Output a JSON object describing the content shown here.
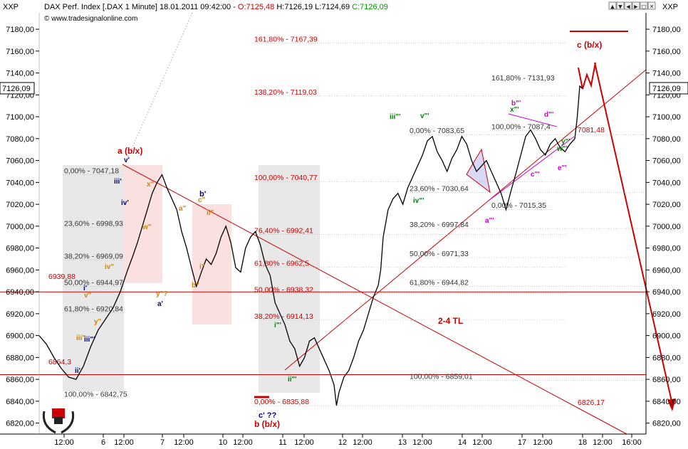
{
  "header": {
    "symbol_left": "XXP",
    "symbol_right": "XXP",
    "title": "DAX Perf. Index [.DAX 1 Minute] 18.01.2011 09:42:00 -",
    "quote": [
      {
        "text": "O:7125,48",
        "color": "#cc0000"
      },
      {
        "text": " H:7126,19 L:7124,69 ",
        "color": "#000000"
      },
      {
        "text": "C:7126,09",
        "color": "#009900"
      }
    ],
    "website": "www.tradesignalonline.com",
    "copyright_icon": "copyright-icon",
    "window_buttons": [
      "scroll-up-icon",
      "scroll-down-icon",
      "scroll-left-icon",
      "scroll-right-icon",
      "maximize-icon",
      "close-icon"
    ]
  },
  "logo": {
    "icon": "laurel-helmet-logo"
  },
  "chart_data": {
    "type": "line",
    "title": "DAX Perf. Index [.DAX 1 Minute]",
    "y_range": [
      6810,
      7195
    ],
    "y_ticks": [
      "6820,00",
      "6840,00",
      "6860,00",
      "6880,00",
      "6900,00",
      "6920,00",
      "6940,00",
      "6960,00",
      "6980,00",
      "7000,00",
      "7020,00",
      "7040,00",
      "7060,00",
      "7080,00",
      "7100,00",
      "7120,00",
      "7140,00",
      "7160,00",
      "7180,00"
    ],
    "x_ticks": [
      "12:00",
      "6",
      "12:00",
      "7",
      "12:00",
      "10",
      "12:00",
      "11",
      "12:00",
      "12",
      "12:00",
      "13",
      "12:00",
      "14",
      "12:00",
      "17",
      "12:00",
      "18",
      "12:00",
      "16:00"
    ],
    "last_price_label": "7126,09",
    "series": [
      {
        "color": "#000000",
        "points": [
          [
            0,
            6900
          ],
          [
            3,
            6892
          ],
          [
            6,
            6880
          ],
          [
            9,
            6870
          ],
          [
            12,
            6862
          ],
          [
            15,
            6860
          ],
          [
            18,
            6872
          ],
          [
            21,
            6890
          ],
          [
            24,
            6905
          ],
          [
            27,
            6915
          ],
          [
            30,
            6925
          ],
          [
            33,
            6940
          ],
          [
            36,
            6960
          ],
          [
            38,
            6972
          ],
          [
            40,
            6985
          ],
          [
            42,
            7000
          ],
          [
            44,
            7015
          ],
          [
            46,
            7030
          ],
          [
            48,
            7040
          ],
          [
            50,
            7047
          ],
          [
            52,
            7035
          ],
          [
            54,
            7025
          ],
          [
            56,
            7015
          ],
          [
            58,
            6995
          ],
          [
            60,
            6980
          ],
          [
            62,
            6962
          ],
          [
            64,
            6945
          ],
          [
            66,
            6958
          ],
          [
            68,
            6970
          ],
          [
            70,
            6965
          ],
          [
            72,
            6975
          ],
          [
            74,
            6990
          ],
          [
            76,
            7000
          ],
          [
            78,
            6985
          ],
          [
            80,
            6962
          ],
          [
            82,
            6958
          ],
          [
            84,
            6980
          ],
          [
            86,
            6990
          ],
          [
            88,
            6995
          ],
          [
            90,
            6983
          ],
          [
            92,
            6965
          ],
          [
            94,
            6955
          ],
          [
            96,
            6930
          ],
          [
            98,
            6920
          ],
          [
            100,
            6910
          ],
          [
            102,
            6895
          ],
          [
            104,
            6888
          ],
          [
            106,
            6872
          ],
          [
            108,
            6880
          ],
          [
            110,
            6895
          ],
          [
            112,
            6898
          ],
          [
            114,
            6888
          ],
          [
            116,
            6878
          ],
          [
            118,
            6868
          ],
          [
            120,
            6855
          ],
          [
            121,
            6836
          ],
          [
            122,
            6848
          ],
          [
            124,
            6862
          ],
          [
            126,
            6868
          ],
          [
            128,
            6880
          ],
          [
            130,
            6895
          ],
          [
            132,
            6905
          ],
          [
            134,
            6920
          ],
          [
            136,
            6935
          ],
          [
            138,
            6946
          ],
          [
            139,
            6960
          ],
          [
            140,
            6990
          ],
          [
            142,
            7015
          ],
          [
            144,
            7025
          ],
          [
            146,
            7030
          ],
          [
            148,
            7020
          ],
          [
            150,
            7035
          ],
          [
            152,
            7045
          ],
          [
            154,
            7055
          ],
          [
            156,
            7065
          ],
          [
            158,
            7078
          ],
          [
            160,
            7082
          ],
          [
            162,
            7068
          ],
          [
            164,
            7060
          ],
          [
            166,
            7050
          ],
          [
            168,
            7062
          ],
          [
            170,
            7070
          ],
          [
            172,
            7082
          ],
          [
            174,
            7075
          ],
          [
            176,
            7060
          ],
          [
            178,
            7050
          ],
          [
            180,
            7055
          ],
          [
            182,
            7060
          ],
          [
            184,
            7050
          ],
          [
            186,
            7040
          ],
          [
            188,
            7030
          ],
          [
            190,
            7015
          ],
          [
            192,
            7032
          ],
          [
            194,
            7048
          ],
          [
            196,
            7065
          ],
          [
            198,
            7082
          ],
          [
            200,
            7088
          ],
          [
            202,
            7080
          ],
          [
            204,
            7070
          ],
          [
            206,
            7065
          ],
          [
            208,
            7075
          ],
          [
            210,
            7080
          ],
          [
            212,
            7072
          ],
          [
            214,
            7068
          ],
          [
            216,
            7075
          ],
          [
            218,
            7080
          ],
          [
            219,
            7100
          ],
          [
            220,
            7128
          ],
          [
            221,
            7126
          ]
        ]
      }
    ],
    "fib_levels": [
      {
        "label": "161,80% - 7167,39",
        "value": 7167.39,
        "color": "#cc0000"
      },
      {
        "label": "138,20% - 7119,03",
        "value": 7119.03,
        "color": "#cc0000"
      },
      {
        "label": "100,00% - 7040,77",
        "value": 7040.77,
        "color": "#cc0000"
      },
      {
        "label": "76,40% - 6992,41",
        "value": 6992.41,
        "color": "#cc0000"
      },
      {
        "label": "61,80% - 6962,5",
        "value": 6962.5,
        "color": "#cc0000"
      },
      {
        "label": "50,00% - 6938,32",
        "value": 6938.32,
        "color": "#cc0000"
      },
      {
        "label": "38,20% - 6914,13",
        "value": 6914.13,
        "color": "#cc0000"
      },
      {
        "label": "0,00% - 6835,88",
        "value": 6835.88,
        "color": "#cc0000"
      },
      {
        "label": "0,00% - 7047,18",
        "value": 7047.18,
        "color": "#333333"
      },
      {
        "label": "23,60% - 6998,93",
        "value": 6998.93,
        "color": "#333333"
      },
      {
        "label": "38,20% - 6969,09",
        "value": 6969.09,
        "color": "#333333"
      },
      {
        "label": "50,00% - 6944,97",
        "value": 6944.97,
        "color": "#333333"
      },
      {
        "label": "61,80% - 6920,84",
        "value": 6920.84,
        "color": "#333333"
      },
      {
        "label": "100,00% - 6842,75",
        "value": 6842.75,
        "color": "#333333"
      },
      {
        "label": "0,00% - 7083,65",
        "value": 7083.65,
        "color": "#333333"
      },
      {
        "label": "23,60% - 7030,64",
        "value": 7030.64,
        "color": "#333333"
      },
      {
        "label": "38,20% - 6997,84",
        "value": 6997.84,
        "color": "#333333"
      },
      {
        "label": "50,00% - 6971,33",
        "value": 6971.33,
        "color": "#333333"
      },
      {
        "label": "61,80% - 6944,82",
        "value": 6944.82,
        "color": "#333333"
      },
      {
        "label": "100,00% - 6859,01",
        "value": 6859.01,
        "color": "#333333"
      },
      {
        "label": "161,80% - 7131,93",
        "value": 7131.93,
        "color": "#333333"
      },
      {
        "label": "100,00% - 7087,4",
        "value": 7087.4,
        "color": "#333333"
      },
      {
        "label": "0,00% - 7015,35",
        "value": 7015.35,
        "color": "#333333"
      }
    ],
    "price_labels": [
      {
        "text": "6939,88",
        "value": 6939.88,
        "color": "#cc0000"
      },
      {
        "text": "6864,3",
        "value": 6864.3,
        "color": "#cc0000"
      },
      {
        "text": "7081,48",
        "value": 7081.48,
        "color": "#cc0000"
      },
      {
        "text": "6826,17",
        "value": 6826.17,
        "color": "#cc0000"
      }
    ],
    "annotations": [
      {
        "text": "a (b/x)",
        "color": "#cc0000"
      },
      {
        "text": "b (b/x)",
        "color": "#cc0000"
      },
      {
        "text": "c (b/x)",
        "color": "#cc0000"
      },
      {
        "text": "2-4 TL",
        "color": "#cc0000"
      },
      {
        "text": "c' ??",
        "color": "#000080"
      },
      {
        "text": "a'",
        "color": "#000080"
      },
      {
        "text": "b'",
        "color": "#000080"
      },
      {
        "text": "y\"?",
        "color": "#cc8800"
      },
      {
        "text": "v'",
        "color": "#000080"
      },
      {
        "text": "iii'",
        "color": "#000080"
      },
      {
        "text": "iv'",
        "color": "#000080"
      },
      {
        "text": "x\"",
        "color": "#cc8800"
      },
      {
        "text": "w\"",
        "color": "#cc8800"
      },
      {
        "text": "a\"",
        "color": "#cc8800"
      },
      {
        "text": "b\"",
        "color": "#cc8800"
      },
      {
        "text": "c\"",
        "color": "#cc8800"
      },
      {
        "text": "i\"",
        "color": "#cc8800"
      },
      {
        "text": "ii\"",
        "color": "#cc8800"
      },
      {
        "text": "iii\"",
        "color": "#cc8800"
      },
      {
        "text": "iv\"",
        "color": "#cc8800"
      },
      {
        "text": "v\"",
        "color": "#cc8800"
      },
      {
        "text": "y\"",
        "color": "#cc8800"
      },
      {
        "text": "i'",
        "color": "#000080"
      },
      {
        "text": "ii'",
        "color": "#000080"
      },
      {
        "text": "iii\"'",
        "color": "#000080"
      },
      {
        "text": "i\"'",
        "color": "#008000"
      },
      {
        "text": "ii\"'",
        "color": "#008000"
      },
      {
        "text": "iii\"'",
        "color": "#008000"
      },
      {
        "text": "iv\"'",
        "color": "#008000"
      },
      {
        "text": "v\"'",
        "color": "#008000"
      },
      {
        "text": "w\"'",
        "color": "#008000"
      },
      {
        "text": "x\"'",
        "color": "#008000"
      },
      {
        "text": "y\"'",
        "color": "#008000"
      },
      {
        "text": "a\"'",
        "color": "#cc00cc"
      },
      {
        "text": "b\"'",
        "color": "#cc00cc"
      },
      {
        "text": "c\"'",
        "color": "#cc00cc"
      },
      {
        "text": "d\"'",
        "color": "#cc00cc"
      },
      {
        "text": "e\"'",
        "color": "#cc00cc"
      }
    ],
    "grid": false
  }
}
